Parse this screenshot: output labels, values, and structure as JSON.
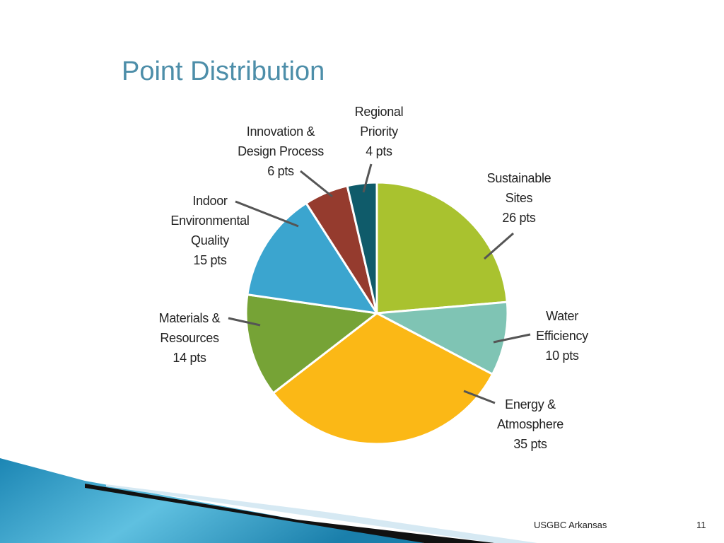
{
  "chart_data": {
    "type": "pie",
    "title": "Point Distribution",
    "categories": [
      "Sustainable Sites",
      "Water Efficiency",
      "Energy & Atmosphere",
      "Materials & Resources",
      "Indoor Environmental Quality",
      "Innovation & Design Process",
      "Regional Priority"
    ],
    "values": [
      26,
      10,
      35,
      14,
      15,
      6,
      4
    ],
    "value_labels": [
      "26 pts",
      "10 pts",
      "35 pts",
      "14 pts",
      "15 pts",
      "6 pts",
      "4 pts"
    ],
    "colors": [
      "#a9c22f",
      "#7fc4b4",
      "#fbb816",
      "#76a336",
      "#3ba5cf",
      "#953b2e",
      "#0f5b6a"
    ]
  },
  "footer": {
    "text": "USGBC Arkansas",
    "page": 11
  }
}
